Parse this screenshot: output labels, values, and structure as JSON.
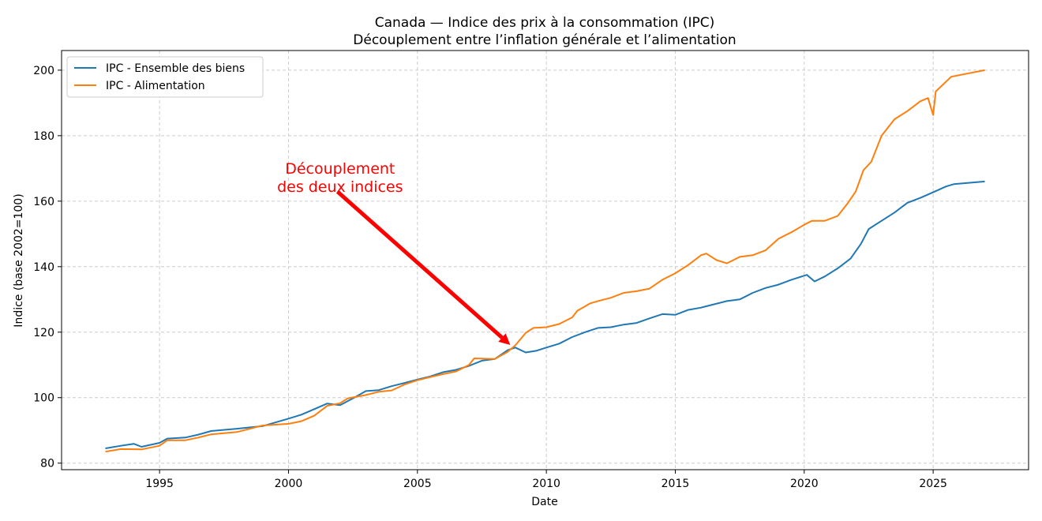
{
  "chart_data": {
    "type": "line",
    "title": "Canada — Indice des prix à la consommation (IPC)",
    "subtitle": "Découplement entre l’inflation générale et l’alimentation",
    "xlabel": "Date",
    "ylabel": "Indice (base 2002=100)",
    "xlim": [
      1991.2,
      2028.7
    ],
    "ylim": [
      78,
      206
    ],
    "xticks": [
      1995,
      2000,
      2005,
      2010,
      2015,
      2020,
      2025
    ],
    "yticks": [
      80,
      100,
      120,
      140,
      160,
      180,
      200
    ],
    "grid": true,
    "legend_position": "top-left",
    "series": [
      {
        "name": "IPC - Ensemble des biens",
        "color": "#1f77b4",
        "x": [
          1992.9,
          1993.5,
          1994,
          1994.3,
          1995,
          1995.3,
          1996,
          1996.5,
          1997,
          1998,
          1999,
          2000,
          2000.5,
          2001,
          2001.5,
          2002,
          2002.5,
          2003,
          2003.5,
          2004,
          2004.5,
          2005,
          2005.5,
          2006,
          2006.5,
          2007,
          2007.5,
          2008,
          2008.5,
          2008.8,
          2009.2,
          2009.6,
          2010,
          2010.5,
          2011,
          2011.5,
          2012,
          2012.5,
          2013,
          2013.5,
          2014,
          2014.5,
          2015,
          2015.5,
          2016,
          2016.5,
          2017,
          2017.5,
          2018,
          2018.5,
          2019,
          2019.5,
          2020.1,
          2020.4,
          2020.8,
          2021.3,
          2021.8,
          2022.2,
          2022.5,
          2023,
          2023.5,
          2024,
          2024.5,
          2025,
          2025.5,
          2025.8,
          2027
        ],
        "y": [
          84.5,
          85.3,
          85.9,
          85.0,
          86.2,
          87.5,
          87.8,
          88.7,
          89.8,
          90.5,
          91.3,
          93.6,
          94.8,
          96.5,
          98.2,
          97.7,
          99.8,
          102.0,
          102.3,
          103.5,
          104.5,
          105.5,
          106.5,
          107.8,
          108.5,
          109.7,
          111.3,
          111.8,
          114.5,
          115.3,
          113.8,
          114.3,
          115.3,
          116.5,
          118.5,
          120.0,
          121.3,
          121.5,
          122.3,
          122.8,
          124.2,
          125.5,
          125.3,
          126.8,
          127.5,
          128.5,
          129.5,
          130.0,
          132.0,
          133.5,
          134.5,
          136.0,
          137.5,
          135.5,
          137.0,
          139.5,
          142.5,
          147.0,
          151.5,
          154.0,
          156.5,
          159.5,
          161.0,
          162.7,
          164.5,
          165.2,
          166.0
        ]
      },
      {
        "name": "IPC - Alimentation",
        "color": "#ff7f0e",
        "x": [
          1992.9,
          1993.5,
          1994.3,
          1995,
          1995.3,
          1996,
          1996.5,
          1997,
          1998,
          1999,
          2000,
          2000.5,
          2001,
          2001.5,
          2002,
          2002.3,
          2003,
          2003.5,
          2004,
          2004.5,
          2005,
          2005.5,
          2006,
          2006.5,
          2007,
          2007.2,
          2008,
          2008.5,
          2008.8,
          2009.2,
          2009.5,
          2010,
          2010.5,
          2011,
          2011.2,
          2011.7,
          2012,
          2012.5,
          2013,
          2013.5,
          2014,
          2014.5,
          2015,
          2015.5,
          2016,
          2016.2,
          2016.6,
          2017,
          2017.5,
          2018,
          2018.5,
          2019,
          2019.5,
          2020,
          2020.3,
          2020.8,
          2021.3,
          2021.7,
          2022,
          2022.3,
          2022.6,
          2023,
          2023.5,
          2024,
          2024.5,
          2024.8,
          2025,
          2025.1,
          2025.7,
          2027
        ],
        "y": [
          83.5,
          84.3,
          84.2,
          85.3,
          87.0,
          87.0,
          87.8,
          88.8,
          89.5,
          91.5,
          92.0,
          92.8,
          94.5,
          97.5,
          98.3,
          99.8,
          100.8,
          101.8,
          102.2,
          104.0,
          105.3,
          106.3,
          107.2,
          108.0,
          110.0,
          112.0,
          111.8,
          114.0,
          116.0,
          119.8,
          121.3,
          121.5,
          122.5,
          124.5,
          126.5,
          128.8,
          129.5,
          130.5,
          132.0,
          132.5,
          133.3,
          136.0,
          138.0,
          140.5,
          143.5,
          144.0,
          142.0,
          141.0,
          143.0,
          143.5,
          145.0,
          148.5,
          150.5,
          152.8,
          154.0,
          154.0,
          155.5,
          159.5,
          163.0,
          169.5,
          172.0,
          180.0,
          185.0,
          187.5,
          190.5,
          191.5,
          186.3,
          193.5,
          198.0,
          200.0
        ]
      }
    ],
    "annotation": {
      "text_line1": "Découplement",
      "text_line2": "des deux indices",
      "color": "#ff0000",
      "text_at": [
        2002.0,
        166.5
      ],
      "arrow_from": [
        2001.9,
        162.9
      ],
      "arrow_to": [
        2008.6,
        116.1
      ]
    }
  }
}
